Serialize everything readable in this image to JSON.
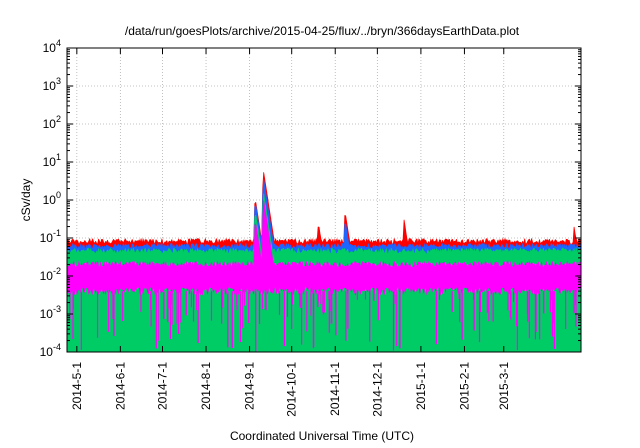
{
  "chart_data": {
    "type": "line",
    "title": "/data/run/goesPlots/archive/2015-04-25/flux/../bryn/366daysEarthData.plot",
    "xlabel": "Coordinated Universal Time (UTC)",
    "ylabel": "cSv/day",
    "x_start": "2014-04-24",
    "x_end": "2015-04-25",
    "x_ticks": [
      "2014-5-1",
      "2014-6-1",
      "2014-7-1",
      "2014-8-1",
      "2014-9-1",
      "2014-10-1",
      "2014-11-1",
      "2014-12-1",
      "2015-1-1",
      "2015-2-1",
      "2015-3-1"
    ],
    "y_scale": "log",
    "ylim": [
      0.0001,
      10000
    ],
    "y_ticks": [
      {
        "base": "10",
        "exp": "-4"
      },
      {
        "base": "10",
        "exp": "-3"
      },
      {
        "base": "10",
        "exp": "-2"
      },
      {
        "base": "10",
        "exp": "-1"
      },
      {
        "base": "10",
        "exp": "0"
      },
      {
        "base": "10",
        "exp": "1"
      },
      {
        "base": "10",
        "exp": "2"
      },
      {
        "base": "10",
        "exp": "3"
      },
      {
        "base": "10",
        "exp": "4"
      }
    ],
    "grid": true,
    "series": [
      {
        "color": "#ff0000",
        "baseline": 0.08,
        "events": [
          {
            "date": "2014-09-05",
            "peak": 1.1
          },
          {
            "date": "2014-09-11",
            "peak": 5.5
          },
          {
            "date": "2014-10-20",
            "peak": 0.25
          },
          {
            "date": "2014-11-08",
            "peak": 0.5
          },
          {
            "date": "2014-12-20",
            "peak": 0.3
          },
          {
            "date": "2015-04-20",
            "peak": 0.2
          }
        ]
      },
      {
        "color": "#1e64ff",
        "baseline": 0.06,
        "events": [
          {
            "date": "2014-09-05",
            "peak": 0.9
          },
          {
            "date": "2014-09-11",
            "peak": 3.5
          },
          {
            "date": "2014-11-08",
            "peak": 0.3
          }
        ]
      },
      {
        "color": "#00cc66",
        "baseline": 0.045,
        "events": [
          {
            "date": "2014-09-05",
            "peak": 0.5
          },
          {
            "date": "2014-09-11",
            "peak": 1.5
          }
        ]
      },
      {
        "color": "#ff00ff",
        "baseline": 0.02,
        "floor": 0.004,
        "dip_min": 0.0001,
        "events": [
          {
            "date": "2014-09-05",
            "peak": 0.3
          },
          {
            "date": "2014-09-11",
            "peak": 1.0
          }
        ]
      }
    ]
  }
}
